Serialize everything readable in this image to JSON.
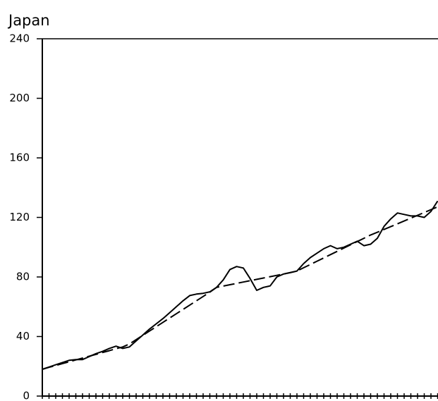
{
  "chart_data": {
    "type": "line",
    "title": "Japan",
    "categories": [
      null,
      null,
      null,
      null,
      null,
      null,
      null,
      null,
      null,
      null,
      null,
      null,
      null,
      null,
      null,
      null,
      null,
      null,
      null,
      null,
      null,
      null,
      null,
      null,
      null,
      null,
      null,
      null,
      null,
      null,
      null,
      null,
      null,
      null,
      null,
      null,
      null,
      null,
      null,
      null,
      null,
      null,
      null,
      null,
      null,
      null,
      null,
      null,
      null,
      null,
      null,
      null,
      null,
      null,
      null,
      null,
      null,
      null,
      null,
      null
    ],
    "series": [
      {
        "color": "#000000",
        "dash": false,
        "values": [
          18,
          19.5,
          21,
          22.5,
          24,
          24.5,
          24.5,
          26.5,
          28.5,
          30,
          32,
          33.5,
          32,
          33,
          37,
          41,
          45,
          48.5,
          52,
          56,
          60,
          64,
          67.5,
          68.5,
          69,
          70,
          73,
          78,
          85,
          87,
          86,
          79,
          71,
          73,
          74,
          80,
          82,
          83,
          84,
          89,
          93,
          96,
          99,
          101,
          99,
          100,
          102,
          104,
          101,
          102,
          106,
          114,
          119,
          123,
          122,
          121,
          121,
          120,
          124,
          131
        ]
      },
      {
        "color": "#000000",
        "dash": true,
        "values": [
          18,
          19.3,
          20.5,
          21.8,
          23,
          24.3,
          25.5,
          26.8,
          28,
          29.3,
          30.5,
          31.8,
          33,
          35,
          37.9,
          40.8,
          43.7,
          46.6,
          49.5,
          52.4,
          55.3,
          58.2,
          61.1,
          64,
          66.9,
          69.8,
          73,
          73.9,
          74.8,
          75.7,
          76.6,
          77.5,
          78.4,
          79.3,
          80.2,
          81.1,
          82,
          82.9,
          84,
          86.2,
          88.4,
          90.6,
          92.8,
          95,
          97.2,
          99.4,
          101.6,
          103.8,
          106,
          108.2,
          110,
          111.9,
          113.8,
          115.7,
          117.6,
          119.5,
          121.4,
          123.3,
          125.2,
          127.1
        ]
      }
    ],
    "ylim": [
      0,
      240
    ],
    "yticks": [
      0,
      40,
      80,
      120,
      160,
      200,
      240
    ],
    "grid": false
  }
}
